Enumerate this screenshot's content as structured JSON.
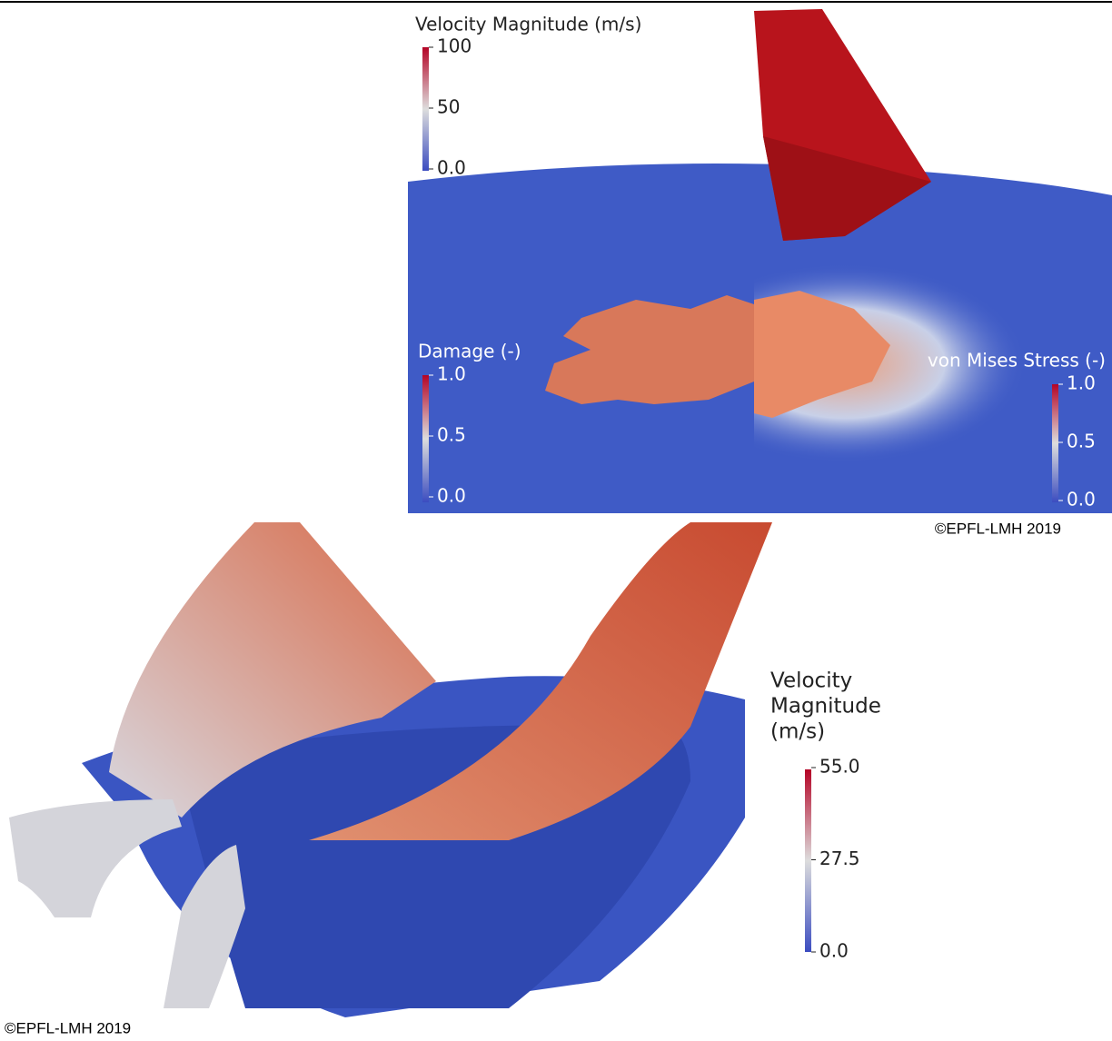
{
  "top_panel": {
    "velocity_colorbar": {
      "title": "Velocity Magnitude (m/s)",
      "ticks": [
        "100",
        "50",
        "0.0"
      ]
    },
    "damage_colorbar": {
      "title": "Damage (-)",
      "ticks": [
        "1.0",
        "0.5",
        "0.0"
      ]
    },
    "stress_colorbar": {
      "title": "von Mises Stress (-)",
      "ticks": [
        "1.0",
        "0.5",
        "0.0"
      ]
    },
    "copyright": "©EPFL-LMH 2019"
  },
  "bottom_panel": {
    "colorbar": {
      "title_lines": [
        "Velocity",
        "Magnitude",
        "(m/s)"
      ],
      "ticks": [
        "55.0",
        "27.5",
        "0.0"
      ]
    },
    "copyright": "©EPFL-LMH 2019"
  }
}
